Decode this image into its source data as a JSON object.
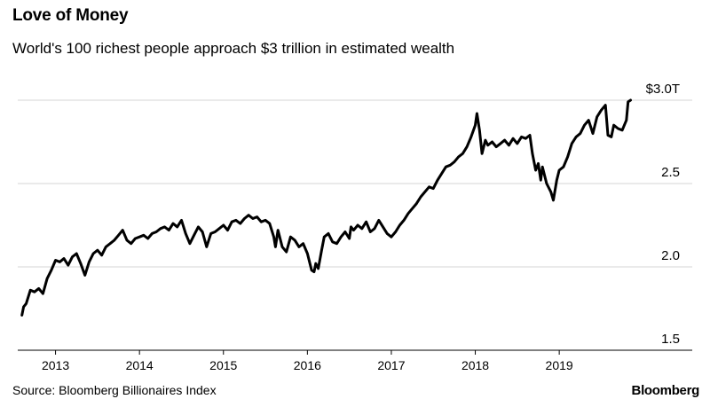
{
  "header": {
    "title": "Love of Money",
    "subtitle": "World's 100 richest people approach $3 trillion in estimated wealth"
  },
  "footer": {
    "source": "Source: Bloomberg Billionaires Index",
    "brand": "Bloomberg"
  },
  "chart_data": {
    "type": "line",
    "title": "Love of Money",
    "subtitle": "World's 100 richest people approach $3 trillion in estimated wealth",
    "xlabel": "",
    "ylabel": "",
    "xlim": [
      2012.55,
      2019.95
    ],
    "ylim": [
      1.5,
      3.0
    ],
    "yticks": [
      1.5,
      2.0,
      2.5,
      3.0
    ],
    "ytick_labels": [
      "1.5",
      "2.0",
      "2.5",
      "$3.0T"
    ],
    "xticks": [
      2013,
      2014,
      2015,
      2016,
      2017,
      2018,
      2019
    ],
    "xtick_labels": [
      "2013",
      "2014",
      "2015",
      "2016",
      "2017",
      "2018",
      "2019"
    ],
    "grid": true,
    "line_color": "#000000",
    "series": [
      {
        "x": [
          2012.6,
          2012.62,
          2012.65,
          2012.7,
          2012.75,
          2012.8,
          2012.85,
          2012.9,
          2012.95,
          2013.0,
          2013.05,
          2013.1,
          2013.15,
          2013.2,
          2013.25,
          2013.3,
          2013.35,
          2013.4,
          2013.45,
          2013.5,
          2013.55,
          2013.6,
          2013.65,
          2013.7,
          2013.75,
          2013.8,
          2013.85,
          2013.9,
          2013.95,
          2014.0,
          2014.05,
          2014.1,
          2014.15,
          2014.2,
          2014.25,
          2014.3,
          2014.35,
          2014.4,
          2014.45,
          2014.5,
          2014.55,
          2014.6,
          2014.65,
          2014.7,
          2014.75,
          2014.8,
          2014.85,
          2014.9,
          2014.95,
          2015.0,
          2015.05,
          2015.1,
          2015.15,
          2015.2,
          2015.25,
          2015.3,
          2015.35,
          2015.4,
          2015.45,
          2015.5,
          2015.55,
          2015.6,
          2015.62,
          2015.65,
          2015.7,
          2015.75,
          2015.8,
          2015.85,
          2015.9,
          2015.95,
          2016.0,
          2016.05,
          2016.08,
          2016.1,
          2016.13,
          2016.17,
          2016.2,
          2016.25,
          2016.3,
          2016.35,
          2016.4,
          2016.45,
          2016.5,
          2016.52,
          2016.55,
          2016.6,
          2016.65,
          2016.7,
          2016.75,
          2016.8,
          2016.85,
          2016.9,
          2016.95,
          2017.0,
          2017.05,
          2017.1,
          2017.15,
          2017.2,
          2017.25,
          2017.3,
          2017.35,
          2017.4,
          2017.45,
          2017.5,
          2017.55,
          2017.6,
          2017.65,
          2017.7,
          2017.75,
          2017.8,
          2017.85,
          2017.9,
          2017.95,
          2018.0,
          2018.02,
          2018.05,
          2018.08,
          2018.12,
          2018.15,
          2018.2,
          2018.25,
          2018.3,
          2018.35,
          2018.4,
          2018.45,
          2018.5,
          2018.55,
          2018.6,
          2018.65,
          2018.68,
          2018.72,
          2018.75,
          2018.78,
          2018.8,
          2018.85,
          2018.9,
          2018.93,
          2018.97,
          2019.0,
          2019.05,
          2019.1,
          2019.15,
          2019.2,
          2019.25,
          2019.3,
          2019.35,
          2019.4,
          2019.45,
          2019.5,
          2019.55,
          2019.58,
          2019.62,
          2019.65,
          2019.7,
          2019.75,
          2019.8,
          2019.82,
          2019.85
        ],
        "values": [
          1.71,
          1.76,
          1.78,
          1.86,
          1.85,
          1.87,
          1.84,
          1.93,
          1.98,
          2.04,
          2.03,
          2.05,
          2.01,
          2.06,
          2.08,
          2.02,
          1.95,
          2.03,
          2.08,
          2.1,
          2.07,
          2.12,
          2.14,
          2.16,
          2.19,
          2.22,
          2.16,
          2.14,
          2.17,
          2.18,
          2.19,
          2.17,
          2.2,
          2.21,
          2.23,
          2.24,
          2.22,
          2.26,
          2.24,
          2.28,
          2.2,
          2.14,
          2.19,
          2.24,
          2.21,
          2.12,
          2.2,
          2.21,
          2.23,
          2.25,
          2.22,
          2.27,
          2.28,
          2.26,
          2.29,
          2.31,
          2.29,
          2.3,
          2.27,
          2.28,
          2.26,
          2.18,
          2.12,
          2.22,
          2.12,
          2.09,
          2.18,
          2.16,
          2.12,
          2.14,
          2.08,
          1.98,
          1.97,
          2.02,
          1.99,
          2.1,
          2.18,
          2.2,
          2.15,
          2.14,
          2.18,
          2.21,
          2.17,
          2.24,
          2.22,
          2.25,
          2.23,
          2.27,
          2.21,
          2.23,
          2.28,
          2.24,
          2.2,
          2.18,
          2.21,
          2.25,
          2.28,
          2.32,
          2.35,
          2.38,
          2.42,
          2.45,
          2.48,
          2.47,
          2.52,
          2.56,
          2.6,
          2.61,
          2.63,
          2.66,
          2.68,
          2.72,
          2.78,
          2.85,
          2.92,
          2.82,
          2.68,
          2.76,
          2.73,
          2.75,
          2.72,
          2.74,
          2.76,
          2.73,
          2.77,
          2.74,
          2.78,
          2.77,
          2.79,
          2.68,
          2.58,
          2.62,
          2.52,
          2.6,
          2.5,
          2.45,
          2.4,
          2.52,
          2.58,
          2.6,
          2.66,
          2.74,
          2.78,
          2.8,
          2.85,
          2.88,
          2.8,
          2.9,
          2.94,
          2.97,
          2.79,
          2.78,
          2.85,
          2.83,
          2.82,
          2.88,
          2.99,
          3.0
        ]
      }
    ]
  }
}
